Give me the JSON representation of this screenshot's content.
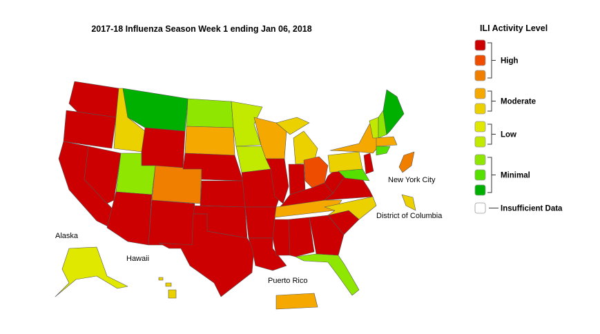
{
  "title": "2017-18 Influenza Season Week 1 ending Jan 06, 2018",
  "legend": {
    "title": "ILI Activity Level",
    "groups": [
      {
        "label": "High",
        "colors": [
          "#cc0000",
          "#ee4d00",
          "#f07f00"
        ]
      },
      {
        "label": "Moderate",
        "colors": [
          "#f5a800",
          "#ecd100"
        ]
      },
      {
        "label": "Low",
        "colors": [
          "#e1e800",
          "#c2ea00"
        ]
      },
      {
        "label": "Minimal",
        "colors": [
          "#8fe600",
          "#55e000",
          "#00b000"
        ]
      },
      {
        "label": "Insufficient Data",
        "colors": [
          "#ffffff"
        ]
      }
    ]
  },
  "labels": [
    "Alaska",
    "Hawaii",
    "Puerto Rico",
    "New York City",
    "District of Columbia"
  ]
}
